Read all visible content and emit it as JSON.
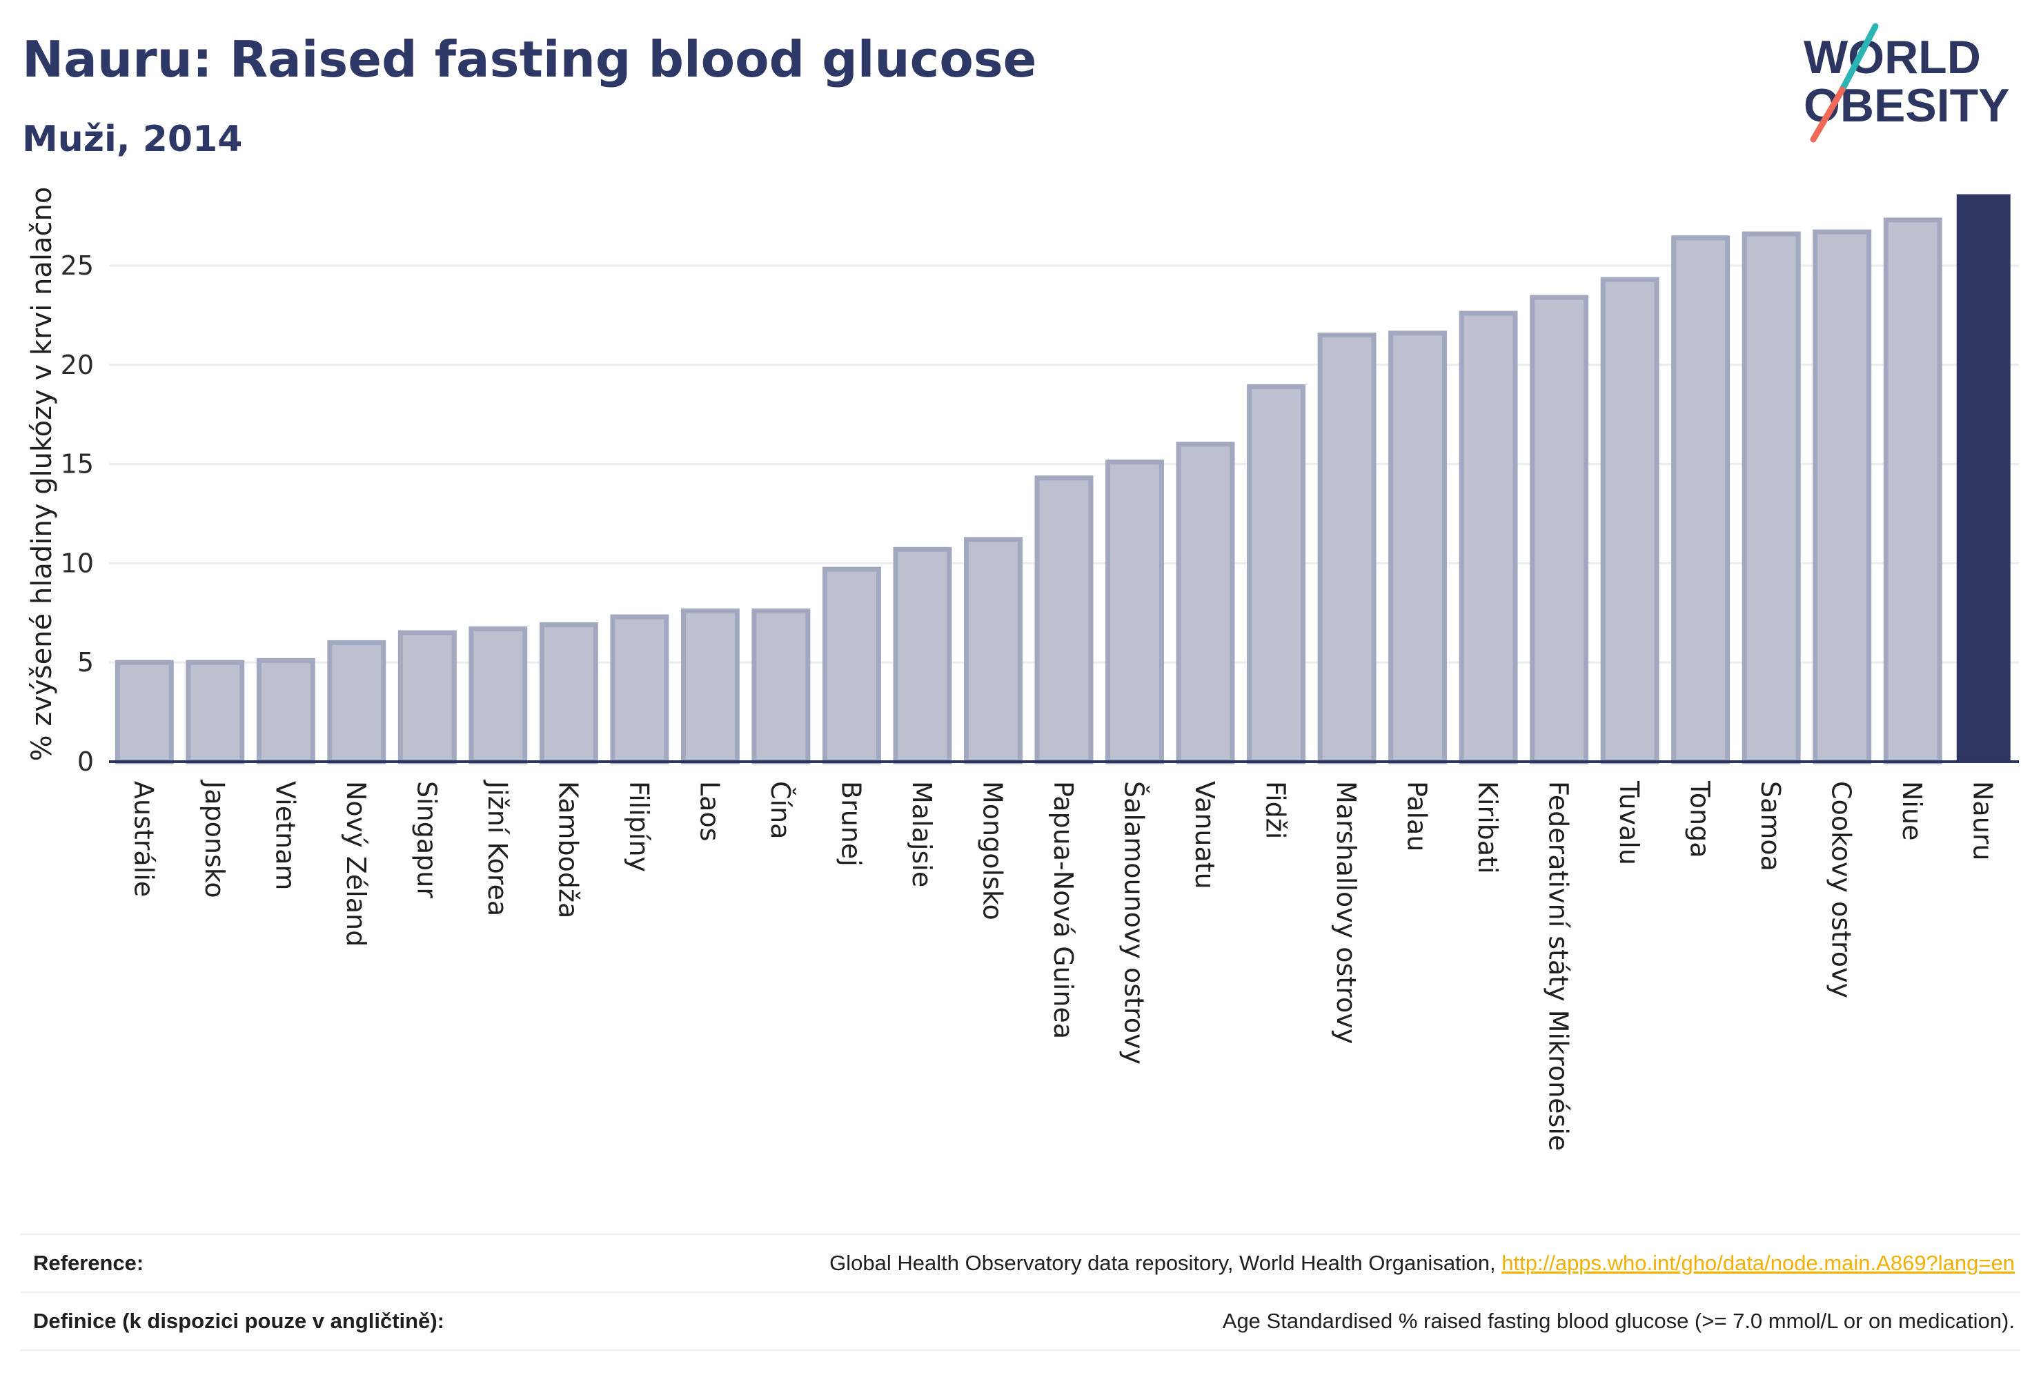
{
  "header": {
    "title": "Nauru: Raised fasting blood glucose",
    "subtitle": "Muži, 2014"
  },
  "logo": {
    "line1": "WORLD",
    "line2": "OBESITY",
    "accent_colors": [
      "#2bb4b4",
      "#ef6b57"
    ]
  },
  "colors": {
    "bar": "#bcc0cf",
    "bar_border": "#a2a8bf",
    "highlight": "#2d3660",
    "axis": "#2b355f",
    "grid": "#ececf2"
  },
  "chart_data": {
    "type": "bar",
    "categories": [
      "Austrálie",
      "Japonsko",
      "Vietnam",
      "Nový Zéland",
      "Singapur",
      "Jižní Korea",
      "Kambodža",
      "Filipíny",
      "Laos",
      "Čína",
      "Brunej",
      "Malajsie",
      "Mongolsko",
      "Papua-Nová Guinea",
      "Šalamounovy ostrovy",
      "Vanuatu",
      "Fidži",
      "Marshallovy ostrovy",
      "Palau",
      "Kiribati",
      "Federativní státy Mikronésie",
      "Tuvalu",
      "Tonga",
      "Samoa",
      "Cookovy ostrovy",
      "Niue",
      "Nauru"
    ],
    "values": [
      5.0,
      5.0,
      5.1,
      6.0,
      6.5,
      6.7,
      6.9,
      7.3,
      7.6,
      7.6,
      9.7,
      10.7,
      11.2,
      14.3,
      15.1,
      16.0,
      18.9,
      21.5,
      21.6,
      22.6,
      23.4,
      24.3,
      26.4,
      26.6,
      26.7,
      27.3,
      28.6
    ],
    "highlight": "Nauru",
    "ylabel": "% zvýšené hladiny glukózy v krvi nalačno",
    "xlabel": "",
    "yticks": [
      0,
      5,
      10,
      15,
      20,
      25
    ],
    "ylim": [
      0,
      29
    ],
    "grid": true
  },
  "footer": {
    "reference_label": "Reference:",
    "reference_text": "Global Health Observatory data repository, World Health Organisation,",
    "reference_link": "http://apps.who.int/gho/data/node.main.A869?lang=en",
    "definition_label": "Definice (k dispozici pouze v angličtině):",
    "definition_text": "Age Standardised % raised fasting blood glucose (>= 7.0 mmol/L or on medication)."
  }
}
